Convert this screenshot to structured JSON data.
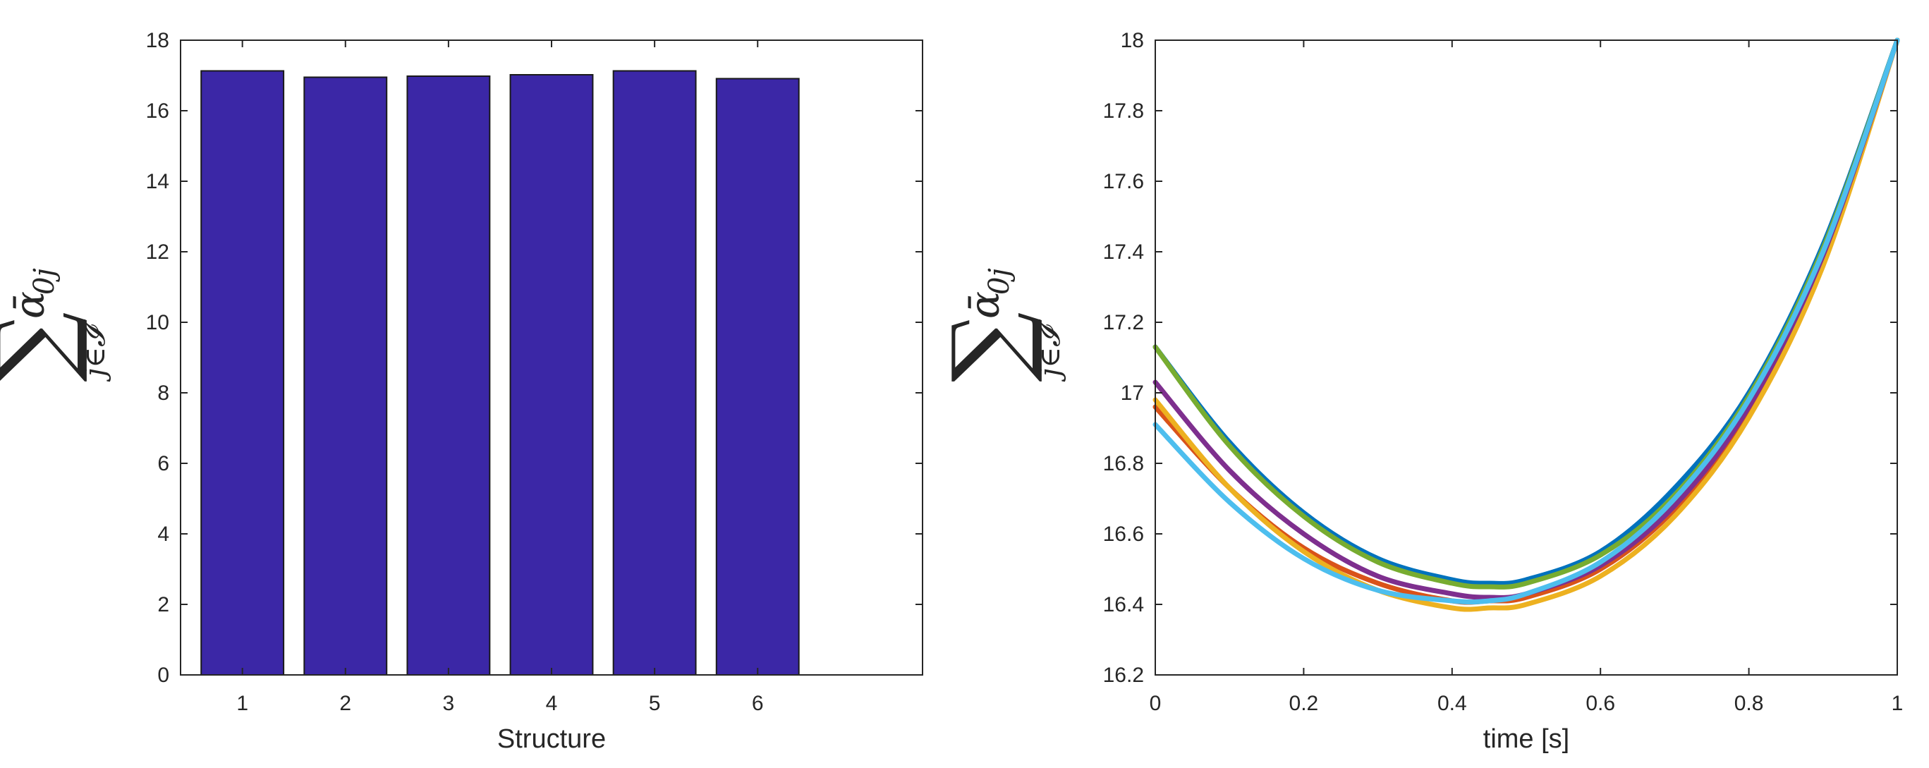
{
  "chart_data": [
    {
      "type": "bar",
      "categories": [
        "1",
        "2",
        "3",
        "4",
        "5",
        "6"
      ],
      "values": [
        17.13,
        16.95,
        16.98,
        17.02,
        17.13,
        16.91
      ],
      "bar_color": "#3b27a6",
      "xlabel": "Structure",
      "ylabel": {
        "sum": "∑",
        "alpha": "ᾱ",
        "alpha_sub": "0j",
        "index": "j∈𝓘"
      },
      "ylim": [
        0,
        18
      ],
      "yticks": [
        0,
        2,
        4,
        6,
        8,
        10,
        12,
        14,
        16,
        18
      ],
      "ytick_labels": [
        "0",
        "2",
        "4",
        "6",
        "8",
        "10",
        "12",
        "14",
        "16",
        "18"
      ],
      "xlim": [
        0.4,
        7.6
      ],
      "grid": false
    },
    {
      "type": "line",
      "x": [
        0,
        0.1,
        0.2,
        0.3,
        0.4,
        0.45,
        0.5,
        0.6,
        0.7,
        0.8,
        0.9,
        1.0
      ],
      "series": [
        {
          "color": "#0072bd",
          "values": [
            17.13,
            16.86,
            16.66,
            16.53,
            16.47,
            16.46,
            16.47,
            16.55,
            16.73,
            17.0,
            17.42,
            18.0
          ]
        },
        {
          "color": "#d95319",
          "values": [
            16.96,
            16.73,
            16.56,
            16.46,
            16.41,
            16.41,
            16.42,
            16.5,
            16.67,
            16.95,
            17.38,
            18.0
          ]
        },
        {
          "color": "#edb120",
          "values": [
            16.98,
            16.73,
            16.55,
            16.44,
            16.39,
            16.39,
            16.4,
            16.48,
            16.65,
            16.93,
            17.36,
            18.0
          ]
        },
        {
          "color": "#7e2f8e",
          "values": [
            17.03,
            16.78,
            16.6,
            16.48,
            16.43,
            16.42,
            16.43,
            16.51,
            16.68,
            16.96,
            17.39,
            18.0
          ]
        },
        {
          "color": "#77ac30",
          "values": [
            17.13,
            16.85,
            16.65,
            16.52,
            16.46,
            16.45,
            16.46,
            16.54,
            16.71,
            16.99,
            17.41,
            18.0
          ]
        },
        {
          "color": "#4dbeee",
          "values": [
            16.91,
            16.69,
            16.53,
            16.44,
            16.41,
            16.41,
            16.43,
            16.52,
            16.7,
            16.98,
            17.4,
            18.0
          ]
        }
      ],
      "xlabel": "time [s]",
      "ylabel": {
        "sum": "∑",
        "alpha": "ᾱ",
        "alpha_sub": "0j",
        "index": "j∈𝓘"
      },
      "xlim": [
        0,
        1
      ],
      "ylim": [
        16.2,
        18
      ],
      "xticks": [
        0,
        0.2,
        0.4,
        0.6,
        0.8,
        1
      ],
      "xtick_labels": [
        "0",
        "0.2",
        "0.4",
        "0.6",
        "0.8",
        "1"
      ],
      "yticks": [
        16.2,
        16.4,
        16.6,
        16.8,
        17,
        17.2,
        17.4,
        17.6,
        17.8,
        18
      ],
      "ytick_labels": [
        "16.2",
        "16.4",
        "16.6",
        "16.8",
        "17",
        "17.2",
        "17.4",
        "17.6",
        "17.8",
        "18"
      ],
      "grid": false
    }
  ]
}
